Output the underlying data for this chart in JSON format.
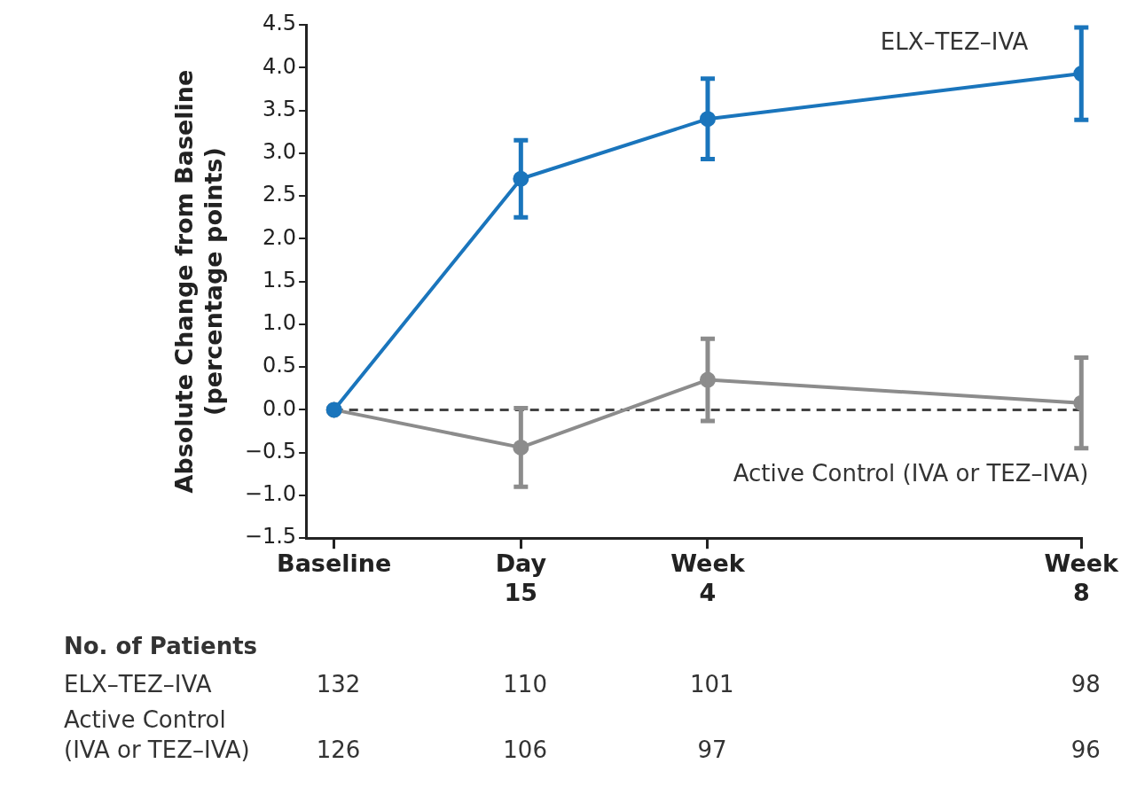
{
  "chart_data": {
    "type": "line",
    "ylabel": "Absolute Change from Baseline\n(percentage points)",
    "categories": [
      "Baseline",
      "Day 15",
      "Week 4",
      null,
      "Week 8"
    ],
    "series": [
      {
        "name": "ELX–TEZ–IVA",
        "color": "#1a75bc",
        "values": [
          0,
          2.7,
          3.4,
          null,
          3.93
        ],
        "errors": [
          null,
          0.45,
          0.47,
          null,
          0.54
        ]
      },
      {
        "name": "Active Control (IVA or TEZ–IVA)",
        "color": "#8c8c8c",
        "values": [
          0,
          -0.44,
          0.35,
          null,
          0.08
        ],
        "errors": [
          null,
          0.46,
          0.48,
          null,
          0.53
        ]
      }
    ],
    "ylim": [
      -1.5,
      4.5
    ],
    "yticks": [
      {
        "value": -1.5,
        "label": "−1.5"
      },
      {
        "value": -1,
        "label": "−1.0"
      },
      {
        "value": -0.5,
        "label": "−0.5"
      },
      {
        "value": 0,
        "label": "0.0"
      },
      {
        "value": 0.5,
        "label": "0.5"
      },
      {
        "value": 1,
        "label": "1.0"
      },
      {
        "value": 1.5,
        "label": "1.5"
      },
      {
        "value": 2,
        "label": "2.0"
      },
      {
        "value": 2.5,
        "label": "2.5"
      },
      {
        "value": 3,
        "label": "3.0"
      },
      {
        "value": 3.5,
        "label": "3.5"
      },
      {
        "value": 4,
        "label": "4.0"
      },
      {
        "value": 4.5,
        "label": "4.5"
      }
    ],
    "ref_lines": [
      {
        "axis": "y",
        "value": 0,
        "color": "#444444",
        "line_style": "dashed"
      }
    ],
    "grid": false,
    "legend": false,
    "marker": "circle",
    "line_style": "solid",
    "annotations": [
      "No. of Patients",
      "ELX–TEZ–IVA",
      "132",
      "110",
      "101",
      "98",
      "Active Control\n(IVA or TEZ–IVA)",
      "126",
      "106",
      "97",
      "96"
    ]
  }
}
